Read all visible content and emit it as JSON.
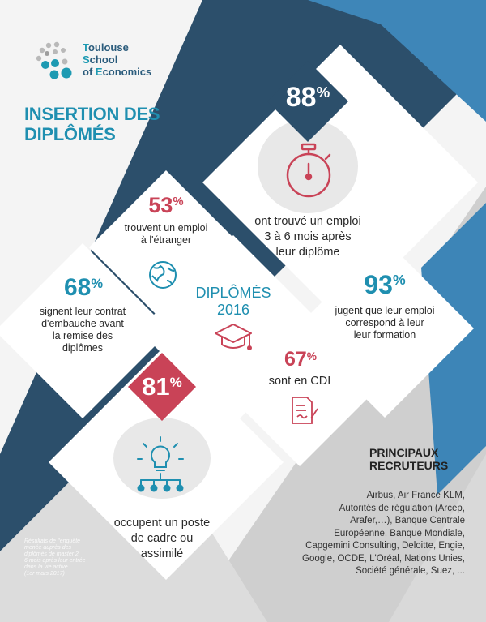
{
  "logo": {
    "line1_cap": "T",
    "line1_rest": "oulouse",
    "line2_cap": "S",
    "line2_rest": "chool",
    "line3_pre": "of ",
    "line3_cap": "E",
    "line3_rest": "conomics"
  },
  "title": {
    "line1": "INSERTION DES",
    "line2": "DIPLÔMÉS"
  },
  "stats": {
    "s88": {
      "value": "88",
      "unit": "%",
      "text": [
        "ont trouvé un emploi",
        "3 à 6 mois après",
        "leur diplôme"
      ],
      "icon": "stopwatch-icon"
    },
    "s53": {
      "value": "53",
      "unit": "%",
      "text": [
        "trouvent un emploi",
        "à l'étranger"
      ],
      "icon": "globe-icon"
    },
    "s68": {
      "value": "68",
      "unit": "%",
      "text": [
        "signent leur contrat",
        "d'embauche avant",
        "la remise des",
        "diplômes"
      ]
    },
    "s93": {
      "value": "93",
      "unit": "%",
      "text": [
        "jugent que leur emploi",
        "correspond à leur",
        "leur formation"
      ]
    },
    "s67": {
      "value": "67",
      "unit": "%",
      "text": [
        "sont en CDI"
      ],
      "icon": "contract-icon"
    },
    "s81": {
      "value": "81",
      "unit": "%",
      "text": [
        "occupent un poste",
        "de cadre ou",
        "assimilé"
      ],
      "icon": "lightbulb-network-icon"
    }
  },
  "center": {
    "line1": "DIPLÔMÉS",
    "line2": "2016",
    "icon": "graduation-cap-icon"
  },
  "recruiters": {
    "title_line1": "PRINCIPAUX",
    "title_line2": "RECRUTEURS",
    "lines": [
      "Airbus, Air France KLM,",
      "Autorités de régulation (Arcep,",
      "Arafer,…), Banque Centrale",
      "Européenne, Banque Mondiale,",
      "Capgemini Consulting, Deloitte, Engie,",
      "Google, OCDE, L'Oréal, Nations Unies,",
      "Société générale, Suez, ..."
    ]
  },
  "footnote": [
    "Résultats de l'enquête",
    "menée auprès des",
    "diplômés de master 2",
    "6 mois après leur entrée",
    "dans la vie active",
    "(1er mars 2017)"
  ],
  "colors": {
    "navy": "#2c4f6b",
    "blue": "#1f8fb0",
    "red": "#c94357",
    "light_blue": "#2e7db0",
    "grey": "#d2d2d2"
  }
}
